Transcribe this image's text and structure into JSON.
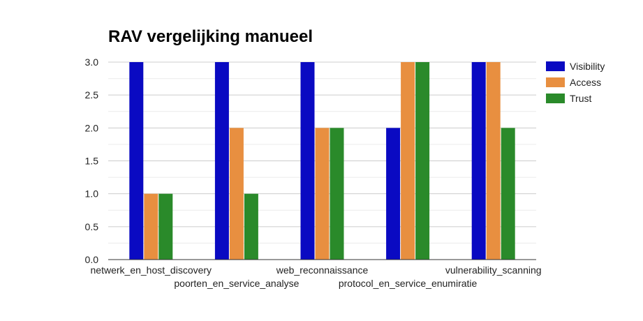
{
  "chart_data": {
    "type": "bar",
    "title": "RAV vergelijking manueel",
    "xlabel": "",
    "ylabel": "",
    "categories": [
      "netwerk_en_host_discovery",
      "poorten_en_service_analyse",
      "web_reconnaissance",
      "protocol_en_service_enumiratie",
      "vulnerability_scanning"
    ],
    "series": [
      {
        "name": "Visibility",
        "color": "#0a0ac2",
        "values": [
          3,
          3,
          3,
          2,
          3
        ]
      },
      {
        "name": "Access",
        "color": "#e88f40",
        "values": [
          1,
          2,
          2,
          3,
          3
        ]
      },
      {
        "name": "Trust",
        "color": "#2a8a2a",
        "values": [
          1,
          1,
          2,
          3,
          2
        ]
      }
    ],
    "ylim": [
      0,
      3
    ],
    "yticks": [
      "0.0",
      "0.5",
      "1.0",
      "1.5",
      "2.0",
      "2.5",
      "3.0"
    ],
    "grid": true,
    "legend_position": "right"
  }
}
